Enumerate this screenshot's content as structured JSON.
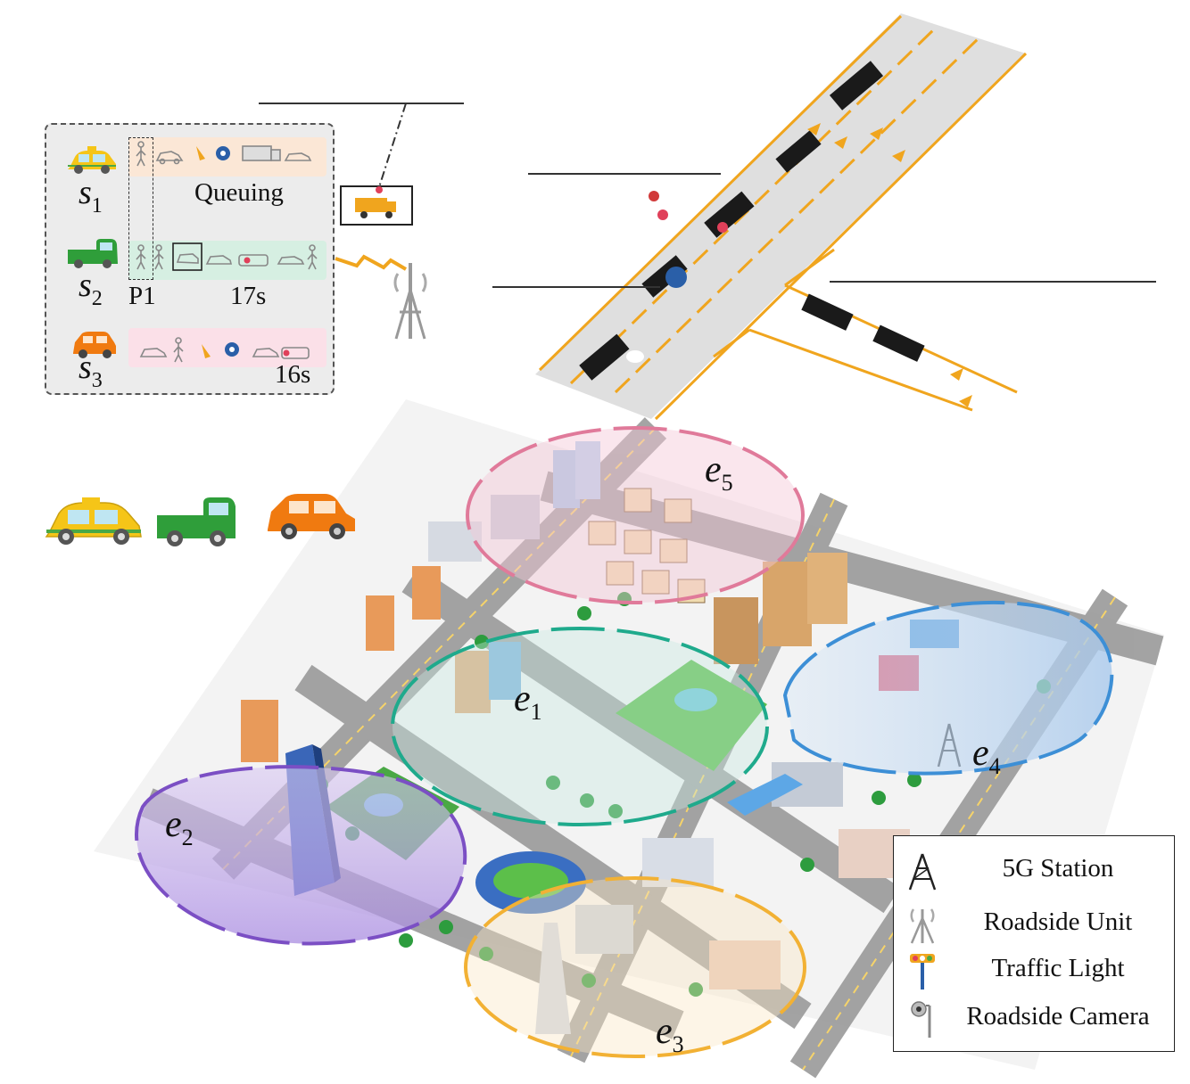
{
  "sessions": [
    {
      "symbol": "s",
      "subscript": "1",
      "label": "Queuing",
      "vehicle": "yellow-taxi"
    },
    {
      "symbol": "s",
      "subscript": "2",
      "sublabel": "P1",
      "label": "17s",
      "vehicle": "green-truck"
    },
    {
      "symbol": "s",
      "subscript": "3",
      "label": "16s",
      "vehicle": "orange-car"
    }
  ],
  "edges": [
    {
      "symbol": "e",
      "subscript": "1"
    },
    {
      "symbol": "e",
      "subscript": "2"
    },
    {
      "symbol": "e",
      "subscript": "3"
    },
    {
      "symbol": "e",
      "subscript": "4"
    },
    {
      "symbol": "e",
      "subscript": "5"
    }
  ],
  "legend": [
    {
      "icon": "5g-station-icon",
      "label": "5G Station"
    },
    {
      "icon": "roadside-unit-icon",
      "label": "Roadside Unit"
    },
    {
      "icon": "traffic-light-icon",
      "label": "Traffic Light"
    },
    {
      "icon": "roadside-camera-icon",
      "label": "Roadside Camera"
    }
  ],
  "colors": {
    "e1": "#1faa8c",
    "e2": "#7b4fc4",
    "e3": "#f2b134",
    "e4": "#3d8fd6",
    "e5": "#e07a9a",
    "road": "#f0a51e",
    "taxi": "#f5c518",
    "truck": "#2f9e3a",
    "car": "#f07a10"
  }
}
